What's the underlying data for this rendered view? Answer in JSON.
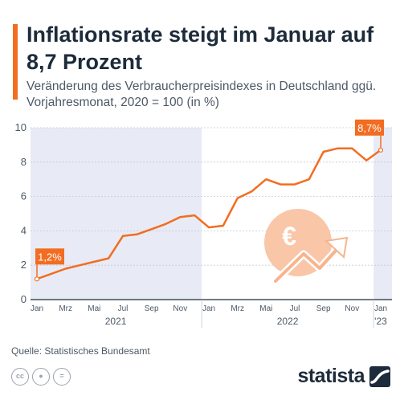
{
  "header": {
    "title": "Inflationsrate steigt im Januar auf 8,7 Prozent",
    "subtitle": "Veränderung des Verbraucherpreisindexes in Deutschland ggü. Vorjahresmonat, 2020 = 100 (in %)"
  },
  "footer": {
    "source": "Quelle: Statistisches Bundesamt",
    "brand": "statista",
    "license_icons": [
      "cc-icon",
      "person-icon",
      "equals-icon"
    ]
  },
  "colors": {
    "accent": "#f26d21",
    "text": "#1d2b3a",
    "shade": "#e8ebf5",
    "euro_circle": "#f9c6a8"
  },
  "chart_data": {
    "type": "line",
    "x": [
      "2021-01",
      "2021-02",
      "2021-03",
      "2021-04",
      "2021-05",
      "2021-06",
      "2021-07",
      "2021-08",
      "2021-09",
      "2021-10",
      "2021-11",
      "2021-12",
      "2022-01",
      "2022-02",
      "2022-03",
      "2022-04",
      "2022-05",
      "2022-06",
      "2022-07",
      "2022-08",
      "2022-09",
      "2022-10",
      "2022-11",
      "2022-12",
      "2023-01"
    ],
    "values": [
      1.2,
      1.5,
      1.8,
      2.0,
      2.2,
      2.4,
      3.7,
      3.8,
      4.1,
      4.4,
      4.8,
      4.9,
      4.2,
      4.3,
      5.9,
      6.3,
      7.0,
      6.7,
      6.7,
      7.0,
      8.6,
      8.8,
      8.8,
      8.1,
      8.7
    ],
    "ylim": [
      0,
      10
    ],
    "yticks": [
      0,
      2,
      4,
      6,
      8,
      10
    ],
    "month_ticks": [
      {
        "label": "Jan",
        "index": 0
      },
      {
        "label": "Mrz",
        "index": 2
      },
      {
        "label": "Mai",
        "index": 4
      },
      {
        "label": "Jul",
        "index": 6
      },
      {
        "label": "Sep",
        "index": 8
      },
      {
        "label": "Nov",
        "index": 10
      },
      {
        "label": "Jan",
        "index": 12
      },
      {
        "label": "Mrz",
        "index": 14
      },
      {
        "label": "Mai",
        "index": 16
      },
      {
        "label": "Jul",
        "index": 18
      },
      {
        "label": "Sep",
        "index": 20
      },
      {
        "label": "Nov",
        "index": 22
      },
      {
        "label": "Jan",
        "index": 24
      }
    ],
    "year_labels": [
      {
        "label": "2021",
        "index": 5.5
      },
      {
        "label": "2022",
        "index": 17.5
      },
      {
        "label": "'23",
        "index": 24
      }
    ],
    "annotations": [
      {
        "label": "1,2%",
        "index": 0
      },
      {
        "label": "8,7%",
        "index": 24
      }
    ],
    "shaded_years": [
      0,
      2
    ],
    "grid": true
  }
}
